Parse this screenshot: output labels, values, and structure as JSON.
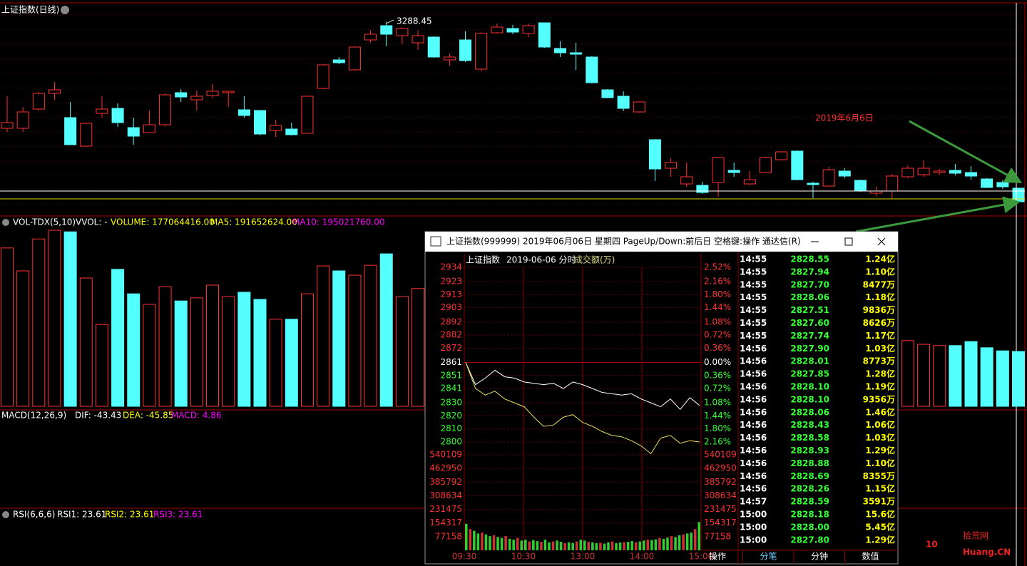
{
  "daily": {
    "title": "上证指数(日线)",
    "high_label": "3288.45",
    "date_note": "2019年6月6日",
    "ylim": [
      2750,
      3334
    ],
    "candles": [
      [
        2990,
        3080,
        2980,
        3006
      ],
      [
        2990,
        3050,
        2980,
        3036
      ],
      [
        3044,
        3092,
        3040,
        3088
      ],
      [
        3088,
        3120,
        3070,
        3098
      ],
      [
        3020,
        3064,
        2944,
        2944
      ],
      [
        2940,
        3006,
        2938,
        3004
      ],
      [
        3032,
        3080,
        3020,
        3044
      ],
      [
        3046,
        3060,
        2994,
        3006
      ],
      [
        2992,
        3020,
        2944,
        2968
      ],
      [
        2978,
        3040,
        2978,
        3000
      ],
      [
        3000,
        3088,
        2996,
        3084
      ],
      [
        3090,
        3100,
        3064,
        3078
      ],
      [
        3070,
        3096,
        3040,
        3080
      ],
      [
        3082,
        3114,
        3076,
        3094
      ],
      [
        3090,
        3094,
        3050,
        3094
      ],
      [
        3042,
        3080,
        3020,
        3026
      ],
      [
        3040,
        3040,
        2970,
        2974
      ],
      [
        2984,
        3014,
        2966,
        2998
      ],
      [
        2988,
        3006,
        2970,
        2972
      ],
      [
        2976,
        3080,
        2976,
        3080
      ],
      [
        3102,
        3170,
        3100,
        3168
      ],
      [
        3182,
        3190,
        3170,
        3174
      ],
      [
        3154,
        3220,
        3152,
        3218
      ],
      [
        3238,
        3266,
        3230,
        3254
      ],
      [
        3278,
        3288.45,
        3220,
        3254
      ],
      [
        3250,
        3274,
        3226,
        3270
      ],
      [
        3230,
        3264,
        3210,
        3250
      ],
      [
        3246,
        3248,
        3188,
        3190
      ],
      [
        3182,
        3200,
        3166,
        3190
      ],
      [
        3238,
        3262,
        3176,
        3180
      ],
      [
        3156,
        3260,
        3150,
        3256
      ],
      [
        3258,
        3284,
        3256,
        3274
      ],
      [
        3270,
        3280,
        3254,
        3260
      ],
      [
        3256,
        3284,
        3246,
        3278
      ],
      [
        3286,
        3287,
        3216,
        3218
      ],
      [
        3214,
        3234,
        3190,
        3202
      ],
      [
        3202,
        3230,
        3154,
        3198
      ],
      [
        3190,
        3192,
        3116,
        3118
      ],
      [
        3098,
        3100,
        3074,
        3076
      ],
      [
        3080,
        3094,
        3038,
        3046
      ],
      [
        3036,
        3066,
        3034,
        3064
      ],
      [
        2958,
        2960,
        2842,
        2876
      ],
      [
        2878,
        2906,
        2854,
        2894
      ],
      [
        2834,
        2894,
        2826,
        2854
      ],
      [
        2830,
        2840,
        2806,
        2810
      ],
      [
        2838,
        2910,
        2798,
        2908
      ],
      [
        2872,
        2894,
        2854,
        2866
      ],
      [
        2834,
        2870,
        2830,
        2846
      ],
      [
        2866,
        2910,
        2864,
        2908
      ],
      [
        2902,
        2926,
        2900,
        2924
      ],
      [
        2926,
        2928,
        2844,
        2846
      ],
      [
        2836,
        2840,
        2794,
        2832
      ],
      [
        2828,
        2882,
        2826,
        2874
      ],
      [
        2870,
        2878,
        2850,
        2856
      ],
      [
        2844,
        2846,
        2812,
        2814
      ],
      [
        2808,
        2826,
        2800,
        2814
      ],
      [
        2814,
        2862,
        2794,
        2856
      ],
      [
        2854,
        2886,
        2850,
        2878
      ],
      [
        2860,
        2900,
        2854,
        2878
      ],
      [
        2866,
        2876,
        2860,
        2870
      ],
      [
        2872,
        2890,
        2858,
        2864
      ],
      [
        2866,
        2884,
        2846,
        2856
      ],
      [
        2848,
        2850,
        2822,
        2824
      ],
      [
        2838,
        2844,
        2820,
        2826
      ],
      [
        2822,
        2824,
        2782,
        2784
      ]
    ]
  },
  "volume_panel": {
    "name": "VOL-TDX(5,10)",
    "vvol": "VVOL: -",
    "volume": "VOLUME: 177064416.00",
    "ma5": "MA5: 191652624.00",
    "ma10": "MA10: 195021760.00",
    "ylim": [
      0,
      575000000
    ],
    "values": [
      511000000,
      437000000,
      540000000,
      568000000,
      563000000,
      414000000,
      264000000,
      442000000,
      363000000,
      329000000,
      386000000,
      340000000,
      350000000,
      391000000,
      354000000,
      368000000,
      345000000,
      281000000,
      281000000,
      363000000,
      453000000,
      437000000,
      423000000,
      455000000,
      492000000,
      354000000,
      380000000,
      null,
      null,
      null,
      null,
      null,
      null,
      null,
      null,
      null,
      null,
      null,
      null,
      null,
      null,
      null,
      null,
      null,
      null,
      null,
      null,
      null,
      null,
      null,
      null,
      null,
      null,
      null,
      null,
      null,
      null,
      212000000,
      200000000,
      196000000,
      196000000,
      209000000,
      189000000,
      179000000,
      177064416
    ]
  },
  "macd_panel": {
    "name": "MACD(12,26,9)",
    "dif": "DIF: -43.43",
    "dea": "DEA: -45.85",
    "macd": "MACD: 4.86"
  },
  "rsi_panel": {
    "name": "RSI(6,6,6)",
    "rsi1": "RSI1: 23.61",
    "rsi2": "RSI2: 23.61",
    "rsi3": "RSI3: 23.61"
  },
  "popup": {
    "title": "上证指数(999999) 2019年06月06日 星期四 PageUp/Down:前后日 空格键:操作 通达信(R)",
    "chart": {
      "name": "上证指数",
      "date": "2019-06-06 分时",
      "vol_unit": "成交额(万)",
      "ylim": [
        2800,
        2934
      ],
      "yticks": [
        2934,
        2923,
        2913,
        2903,
        2892,
        2882,
        2872,
        2861,
        2851,
        2841,
        2830,
        2820,
        2810,
        2800
      ],
      "pct_labels": [
        "2.52%",
        "2.16%",
        "1.80%",
        "1.44%",
        "1.08%",
        "0.72%",
        "0.36%",
        "0.00%",
        "0.36%",
        "0.72%",
        "1.08%",
        "1.44%",
        "1.80%",
        "2.16%"
      ],
      "vol_ylim": [
        0,
        540109
      ],
      "vol_ticks": [
        540109,
        462950,
        385792,
        308634,
        231475,
        154317,
        77158
      ],
      "time_labels": [
        "09:30",
        "10:30",
        "13:00",
        "14:00",
        "15:00"
      ],
      "series": [
        {
          "color": "#ffffff",
          "values": [
            2861,
            2844,
            2849,
            2855,
            2850,
            2849,
            2846,
            2845,
            2844,
            2845,
            2841,
            2846,
            2844,
            2841,
            2838,
            2837,
            2836,
            2837,
            2833,
            2830,
            2827,
            2833,
            2825,
            2834,
            2828
          ]
        },
        {
          "color": "#e8e060",
          "values": [
            2861,
            2841,
            2836,
            2839,
            2833,
            2830,
            2827,
            2819,
            2812,
            2813,
            2819,
            2821,
            2815,
            2812,
            2808,
            2805,
            2804,
            2801,
            2797,
            2791,
            2803,
            2805,
            2799,
            2801,
            2800
          ]
        }
      ],
      "volumes": [
        150000,
        120000,
        110000,
        95000,
        100000,
        90000,
        80000,
        85000,
        75000,
        70000,
        80000,
        65000,
        60000,
        70000,
        55000,
        60000,
        50000,
        58000,
        52000,
        48000,
        60000,
        45000,
        50000,
        55000,
        48000,
        40000,
        45000,
        42000,
        50000,
        60000,
        55000,
        48000,
        45000,
        40000,
        42000,
        38000,
        45000,
        50000,
        40000,
        44000,
        46000,
        48000,
        52000,
        45000,
        50000,
        55000,
        60000,
        58000,
        62000,
        70000,
        65000,
        72000,
        80000,
        75000,
        85000,
        90000,
        95000,
        100000,
        120000,
        160000
      ]
    },
    "ticks": [
      [
        "14:55",
        "2828.55",
        "1.24亿"
      ],
      [
        "14:55",
        "2827.94",
        "1.10亿"
      ],
      [
        "14:55",
        "2827.70",
        "8477万"
      ],
      [
        "14:55",
        "2828.06",
        "1.18亿"
      ],
      [
        "14:55",
        "2827.51",
        "9836万"
      ],
      [
        "14:55",
        "2827.60",
        "8626万"
      ],
      [
        "14:55",
        "2827.74",
        "1.17亿"
      ],
      [
        "14:56",
        "2827.90",
        "1.03亿"
      ],
      [
        "14:56",
        "2828.01",
        "8773万"
      ],
      [
        "14:56",
        "2827.85",
        "1.28亿"
      ],
      [
        "14:56",
        "2828.10",
        "1.19亿"
      ],
      [
        "14:56",
        "2828.10",
        "9356万"
      ],
      [
        "14:56",
        "2828.06",
        "1.46亿"
      ],
      [
        "14:56",
        "2828.43",
        "1.06亿"
      ],
      [
        "14:56",
        "2828.58",
        "1.03亿"
      ],
      [
        "14:56",
        "2828.93",
        "1.29亿"
      ],
      [
        "14:56",
        "2828.88",
        "1.10亿"
      ],
      [
        "14:56",
        "2828.69",
        "8355万"
      ],
      [
        "14:56",
        "2828.26",
        "1.15亿"
      ],
      [
        "14:57",
        "2828.59",
        "3591万"
      ],
      [
        "15:00",
        "2828.18",
        "15.6亿"
      ],
      [
        "15:00",
        "2828.00",
        "5.45亿"
      ],
      [
        "15:00",
        "2827.80",
        "1.29亿"
      ]
    ],
    "tabs": [
      "操作",
      "分笔",
      "分钟",
      "数值"
    ]
  },
  "watermark": {
    "num": "10",
    "name": "拾荒网",
    "site": "Huang.CN"
  }
}
